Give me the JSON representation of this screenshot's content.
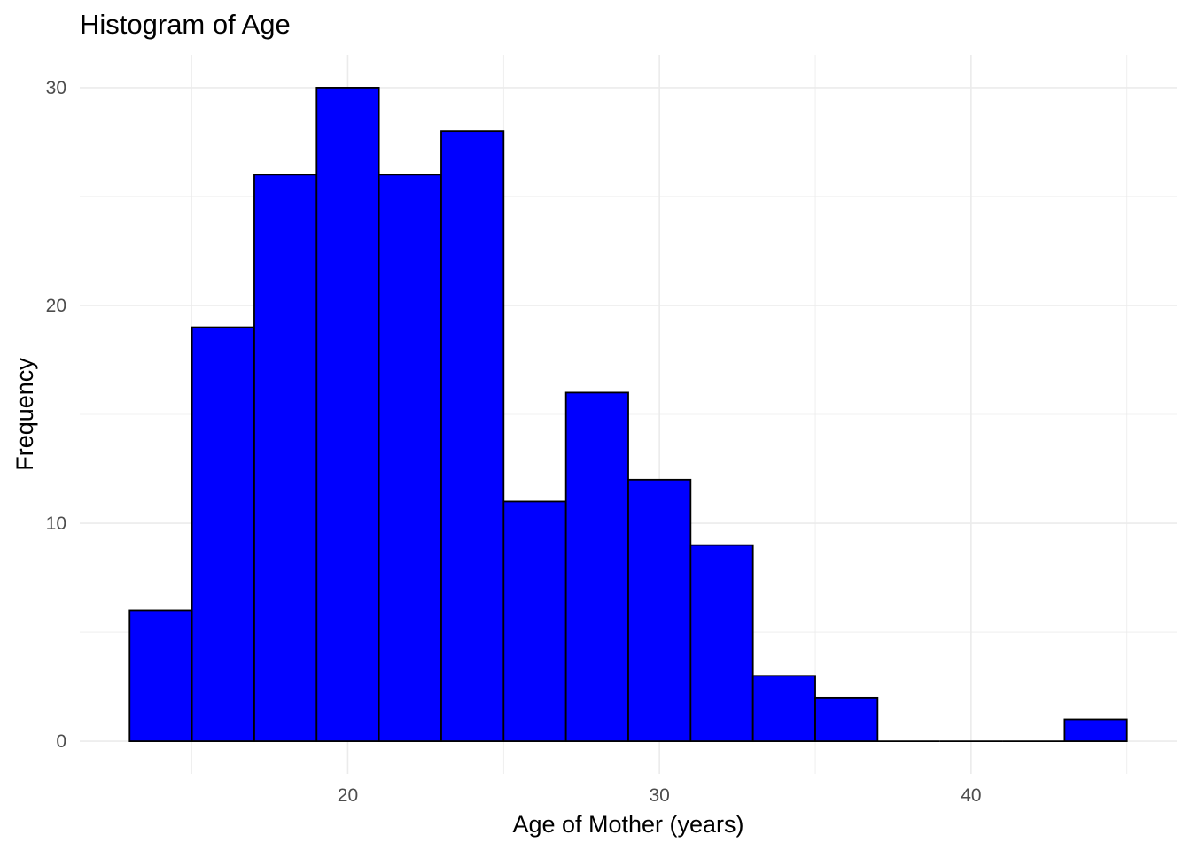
{
  "chart_data": {
    "type": "bar",
    "title": "Histogram of Age",
    "xlabel": "Age of Mother (years)",
    "ylabel": "Frequency",
    "bins": [
      {
        "x0": 13,
        "x1": 15,
        "count": 6
      },
      {
        "x0": 15,
        "x1": 17,
        "count": 19
      },
      {
        "x0": 17,
        "x1": 19,
        "count": 26
      },
      {
        "x0": 19,
        "x1": 21,
        "count": 30
      },
      {
        "x0": 21,
        "x1": 23,
        "count": 26
      },
      {
        "x0": 23,
        "x1": 25,
        "count": 28
      },
      {
        "x0": 25,
        "x1": 27,
        "count": 11
      },
      {
        "x0": 27,
        "x1": 29,
        "count": 16
      },
      {
        "x0": 29,
        "x1": 31,
        "count": 12
      },
      {
        "x0": 31,
        "x1": 33,
        "count": 9
      },
      {
        "x0": 33,
        "x1": 35,
        "count": 3
      },
      {
        "x0": 35,
        "x1": 37,
        "count": 2
      },
      {
        "x0": 37,
        "x1": 39,
        "count": 0
      },
      {
        "x0": 39,
        "x1": 41,
        "count": 0
      },
      {
        "x0": 41,
        "x1": 43,
        "count": 0
      },
      {
        "x0": 43,
        "x1": 45,
        "count": 1
      }
    ],
    "xlim": [
      11.4,
      46.6
    ],
    "ylim": [
      -1.5,
      31.5
    ],
    "x_ticks": [
      20,
      30,
      40
    ],
    "x_tick_labels": [
      "20",
      "30",
      "40"
    ],
    "y_ticks": [
      0,
      10,
      20,
      30
    ],
    "y_tick_labels": [
      "0",
      "10",
      "20",
      "30"
    ],
    "x_minor_ticks": [
      15,
      25,
      35,
      45
    ],
    "y_minor_ticks": [
      5,
      15,
      25
    ],
    "grid": true,
    "legend": "none",
    "colors": {
      "bar_fill": "#0000ff",
      "bar_stroke": "#000000",
      "grid": "#ebebeb",
      "tick_text": "#4d4d4d"
    }
  }
}
